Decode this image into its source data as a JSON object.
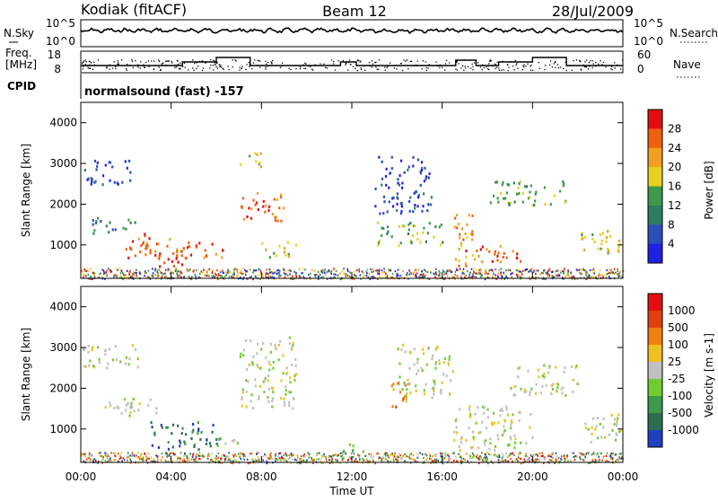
{
  "header": {
    "station": "Kodiak (fitACF)",
    "beam": "Beam 12",
    "date": "28/Jul/2009"
  },
  "noise_panel": {
    "left_label": "N.Sky",
    "right_label": "N.Search",
    "left_ticks": [
      "10^5",
      "10^0"
    ],
    "right_ticks": [
      "10^5",
      "10^0"
    ]
  },
  "freq_panel": {
    "left_label_1": "Freq.",
    "left_label_2": "[MHz]",
    "right_label": "Nave",
    "left_ticks": [
      "18",
      "8"
    ],
    "right_ticks": [
      "60",
      "0"
    ]
  },
  "cpid": {
    "label": "CPID",
    "value": "normalsound (fast) -157"
  },
  "chart_data": [
    {
      "type": "heatmap",
      "title": "",
      "ylabel": "Slant Range [km]",
      "colorbar_label": "Power [dB]",
      "colorbar_ticks": [
        "28",
        "24",
        "20",
        "16",
        "12",
        "8",
        "4"
      ],
      "colors": [
        "#2020e0",
        "#2a4fb8",
        "#2e7d60",
        "#3e9a4a",
        "#e8d020",
        "#f0a020",
        "#f06010",
        "#e01010"
      ],
      "yticks": [
        "1000",
        "2000",
        "3000",
        "4000"
      ],
      "ylim": [
        180,
        4500
      ],
      "blobs": [
        {
          "t0": 0.0,
          "t1": 2.2,
          "r0": 2500,
          "r1": 3100,
          "c": 1
        },
        {
          "t0": 0.5,
          "t1": 2.5,
          "r0": 1300,
          "r1": 1700,
          "c": 2
        },
        {
          "t0": 1.8,
          "t1": 4.8,
          "r0": 700,
          "r1": 1300,
          "c": 6
        },
        {
          "t0": 3.0,
          "t1": 5.0,
          "r0": 500,
          "r1": 900,
          "c": 7
        },
        {
          "t0": 5.0,
          "t1": 6.3,
          "r0": 700,
          "r1": 1100,
          "c": 6
        },
        {
          "t0": 7.0,
          "t1": 9.0,
          "r0": 1600,
          "r1": 2300,
          "c": 6
        },
        {
          "t0": 7.0,
          "t1": 8.0,
          "r0": 2900,
          "r1": 3300,
          "c": 4
        },
        {
          "t0": 8.0,
          "t1": 9.5,
          "r0": 700,
          "r1": 1100,
          "c": 4
        },
        {
          "t0": 13.0,
          "t1": 15.5,
          "r0": 1800,
          "r1": 3200,
          "c": 1
        },
        {
          "t0": 13.0,
          "t1": 16.0,
          "r0": 1000,
          "r1": 1600,
          "c": 3
        },
        {
          "t0": 16.5,
          "t1": 17.5,
          "r0": 500,
          "r1": 1800,
          "c": 5
        },
        {
          "t0": 16.8,
          "t1": 19.5,
          "r0": 600,
          "r1": 1000,
          "c": 6
        },
        {
          "t0": 18.0,
          "t1": 21.5,
          "r0": 2000,
          "r1": 2600,
          "c": 3
        },
        {
          "t0": 22.0,
          "t1": 24.0,
          "r0": 800,
          "r1": 1400,
          "c": 4
        }
      ]
    },
    {
      "type": "heatmap",
      "title": "",
      "ylabel": "Slant Range [km]",
      "colorbar_label": "Velocity [m s-1]",
      "colorbar_ticks": [
        "1000",
        "500",
        "100",
        "25",
        "-25",
        "-100",
        "-500",
        "-1000"
      ],
      "colors": [
        "#2040c0",
        "#2e6e50",
        "#3e9a4a",
        "#70cc30",
        "#c0c0c0",
        "#f0c020",
        "#f08010",
        "#e04010",
        "#e01010"
      ],
      "yticks": [
        "1000",
        "2000",
        "3000",
        "4000"
      ],
      "ylim": [
        180,
        4500
      ],
      "blobs": [
        {
          "t0": 0.0,
          "t1": 2.5,
          "r0": 2500,
          "r1": 3100,
          "c": 4
        },
        {
          "t0": 1.0,
          "t1": 3.5,
          "r0": 1300,
          "r1": 1800,
          "c": 4
        },
        {
          "t0": 3.0,
          "t1": 6.0,
          "r0": 500,
          "r1": 1200,
          "c": 1
        },
        {
          "t0": 6.0,
          "t1": 7.0,
          "r0": 600,
          "r1": 900,
          "c": 3
        },
        {
          "t0": 7.0,
          "t1": 9.5,
          "r0": 1500,
          "r1": 3300,
          "c": 4
        },
        {
          "t0": 11.5,
          "t1": 12.5,
          "r0": 400,
          "r1": 700,
          "c": 3
        },
        {
          "t0": 13.5,
          "t1": 14.5,
          "r0": 1500,
          "r1": 2200,
          "c": 6
        },
        {
          "t0": 14.0,
          "t1": 16.5,
          "r0": 1800,
          "r1": 3100,
          "c": 4
        },
        {
          "t0": 16.5,
          "t1": 20.0,
          "r0": 500,
          "r1": 1600,
          "c": 4
        },
        {
          "t0": 19.0,
          "t1": 22.0,
          "r0": 1800,
          "r1": 2600,
          "c": 4
        },
        {
          "t0": 22.0,
          "t1": 24.0,
          "r0": 700,
          "r1": 1400,
          "c": 4
        }
      ]
    }
  ],
  "xaxis": {
    "label": "Time UT",
    "ticks": [
      "00:00",
      "04:00",
      "08:00",
      "12:00",
      "16:00",
      "20:00",
      "00:00"
    ]
  }
}
